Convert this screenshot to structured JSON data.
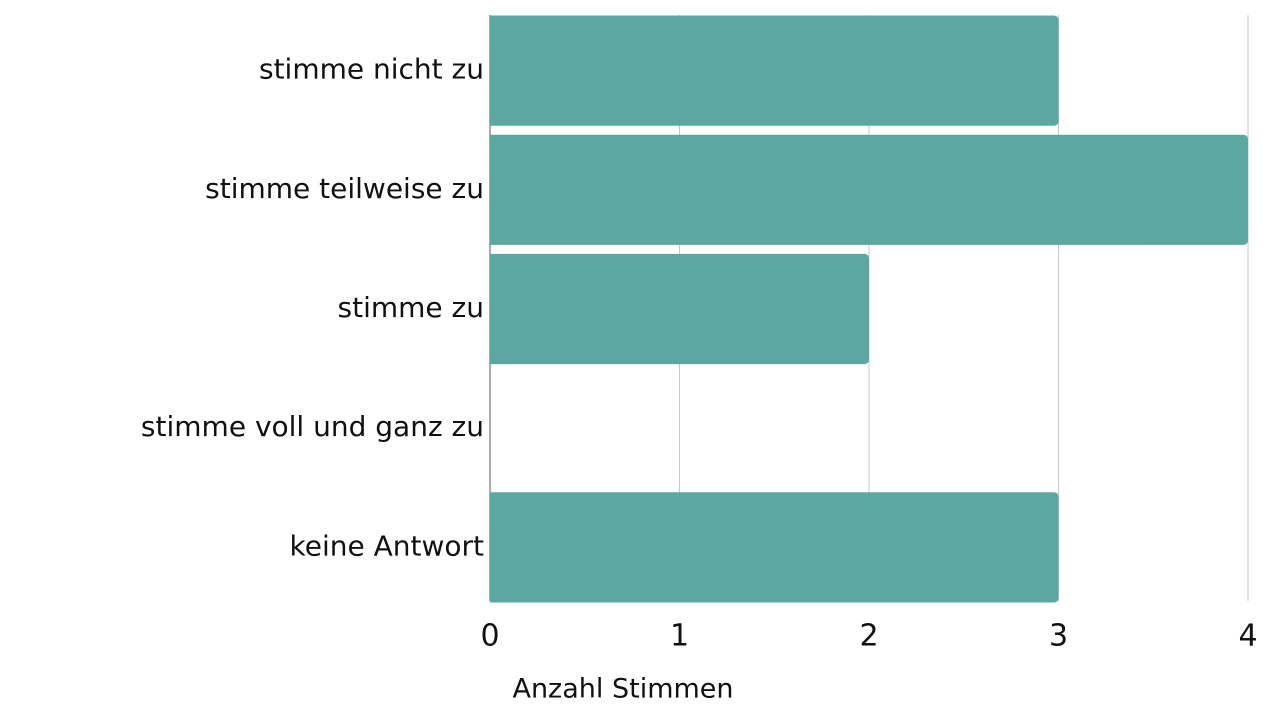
{
  "chart_data": {
    "type": "bar",
    "orientation": "horizontal",
    "categories": [
      "stimme nicht zu",
      "stimme teilweise zu",
      "stimme zu",
      "stimme voll und ganz zu",
      "keine Antwort"
    ],
    "values": [
      3,
      4,
      2,
      0,
      3
    ],
    "color": "#5ba8a0",
    "x_label": "Anzahl Stimmen",
    "xlim": [
      0,
      4
    ],
    "xticks": [
      0,
      1,
      2,
      3,
      4
    ],
    "grid": true
  }
}
